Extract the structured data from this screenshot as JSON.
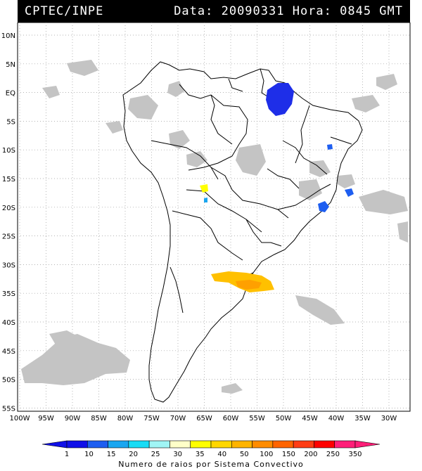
{
  "header": {
    "left_text": "CPTEC/INPE",
    "right_text": "Data: 20090331 Hora: 0845 GMT"
  },
  "map": {
    "lat_labels": [
      "10N",
      "5N",
      "EQ",
      "5S",
      "10S",
      "15S",
      "20S",
      "25S",
      "30S",
      "35S",
      "40S",
      "45S",
      "50S",
      "55S"
    ],
    "lon_labels": [
      "100W",
      "95W",
      "90W",
      "85W",
      "80W",
      "75W",
      "70W",
      "65W",
      "60W",
      "55W",
      "50W",
      "45W",
      "40W",
      "35W",
      "30W"
    ],
    "colors": {
      "land_border": "#000000",
      "cloud_gray": "#bdbdbd",
      "grid": "#9a9a9a"
    }
  },
  "legend": {
    "ticks": [
      "1",
      "10",
      "15",
      "20",
      "25",
      "30",
      "35",
      "40",
      "50",
      "100",
      "150",
      "200",
      "250",
      "350"
    ],
    "colors": [
      "#1010e8",
      "#1e5ef0",
      "#1aa6f0",
      "#18dcf5",
      "#a0f5f5",
      "#ffffc8",
      "#ffff00",
      "#ffd700",
      "#ffb400",
      "#ff8c00",
      "#ff6400",
      "#ff3c14",
      "#ff0000",
      "#ff1e78"
    ],
    "caption": "Numero de raios por Sistema Convectivo"
  }
}
